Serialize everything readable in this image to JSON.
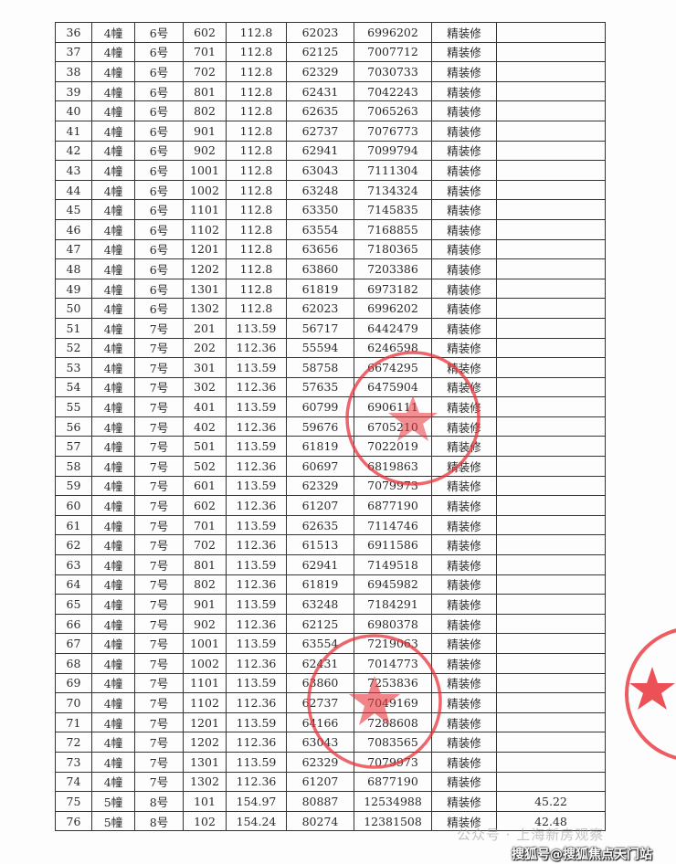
{
  "table": {
    "rows": [
      [
        "36",
        "4幢",
        "6号",
        "602",
        "112.8",
        "62023",
        "6996202",
        "精装修",
        ""
      ],
      [
        "37",
        "4幢",
        "6号",
        "701",
        "112.8",
        "62125",
        "7007712",
        "精装修",
        ""
      ],
      [
        "38",
        "4幢",
        "6号",
        "702",
        "112.8",
        "62329",
        "7030733",
        "精装修",
        ""
      ],
      [
        "39",
        "4幢",
        "6号",
        "801",
        "112.8",
        "62431",
        "7042243",
        "精装修",
        ""
      ],
      [
        "40",
        "4幢",
        "6号",
        "802",
        "112.8",
        "62635",
        "7065263",
        "精装修",
        ""
      ],
      [
        "41",
        "4幢",
        "6号",
        "901",
        "112.8",
        "62737",
        "7076773",
        "精装修",
        ""
      ],
      [
        "42",
        "4幢",
        "6号",
        "902",
        "112.8",
        "62941",
        "7099794",
        "精装修",
        ""
      ],
      [
        "43",
        "4幢",
        "6号",
        "1001",
        "112.8",
        "63043",
        "7111304",
        "精装修",
        ""
      ],
      [
        "44",
        "4幢",
        "6号",
        "1002",
        "112.8",
        "63248",
        "7134324",
        "精装修",
        ""
      ],
      [
        "45",
        "4幢",
        "6号",
        "1101",
        "112.8",
        "63350",
        "7145835",
        "精装修",
        ""
      ],
      [
        "46",
        "4幢",
        "6号",
        "1102",
        "112.8",
        "63554",
        "7168855",
        "精装修",
        ""
      ],
      [
        "47",
        "4幢",
        "6号",
        "1201",
        "112.8",
        "63656",
        "7180365",
        "精装修",
        ""
      ],
      [
        "48",
        "4幢",
        "6号",
        "1202",
        "112.8",
        "63860",
        "7203386",
        "精装修",
        ""
      ],
      [
        "49",
        "4幢",
        "6号",
        "1301",
        "112.8",
        "61819",
        "6973182",
        "精装修",
        ""
      ],
      [
        "50",
        "4幢",
        "6号",
        "1302",
        "112.8",
        "62023",
        "6996202",
        "精装修",
        ""
      ],
      [
        "51",
        "4幢",
        "7号",
        "201",
        "113.59",
        "56717",
        "6442479",
        "精装修",
        ""
      ],
      [
        "52",
        "4幢",
        "7号",
        "202",
        "112.36",
        "55594",
        "6246598",
        "精装修",
        ""
      ],
      [
        "53",
        "4幢",
        "7号",
        "301",
        "113.59",
        "58758",
        "6674295",
        "精装修",
        ""
      ],
      [
        "54",
        "4幢",
        "7号",
        "302",
        "112.36",
        "57635",
        "6475904",
        "精装修",
        ""
      ],
      [
        "55",
        "4幢",
        "7号",
        "401",
        "113.59",
        "60799",
        "6906111",
        "精装修",
        ""
      ],
      [
        "56",
        "4幢",
        "7号",
        "402",
        "112.36",
        "59676",
        "6705210",
        "精装修",
        ""
      ],
      [
        "57",
        "4幢",
        "7号",
        "501",
        "113.59",
        "61819",
        "7022019",
        "精装修",
        ""
      ],
      [
        "58",
        "4幢",
        "7号",
        "502",
        "112.36",
        "60697",
        "6819863",
        "精装修",
        ""
      ],
      [
        "59",
        "4幢",
        "7号",
        "601",
        "113.59",
        "62329",
        "7079973",
        "精装修",
        ""
      ],
      [
        "60",
        "4幢",
        "7号",
        "602",
        "112.36",
        "61207",
        "6877190",
        "精装修",
        ""
      ],
      [
        "61",
        "4幢",
        "7号",
        "701",
        "113.59",
        "62635",
        "7114746",
        "精装修",
        ""
      ],
      [
        "62",
        "4幢",
        "7号",
        "702",
        "112.36",
        "61513",
        "6911586",
        "精装修",
        ""
      ],
      [
        "63",
        "4幢",
        "7号",
        "801",
        "113.59",
        "62941",
        "7149518",
        "精装修",
        ""
      ],
      [
        "64",
        "4幢",
        "7号",
        "802",
        "112.36",
        "61819",
        "6945982",
        "精装修",
        ""
      ],
      [
        "65",
        "4幢",
        "7号",
        "901",
        "113.59",
        "63248",
        "7184291",
        "精装修",
        ""
      ],
      [
        "66",
        "4幢",
        "7号",
        "902",
        "112.36",
        "62125",
        "6980378",
        "精装修",
        ""
      ],
      [
        "67",
        "4幢",
        "7号",
        "1001",
        "113.59",
        "63554",
        "7219063",
        "精装修",
        ""
      ],
      [
        "68",
        "4幢",
        "7号",
        "1002",
        "112.36",
        "62431",
        "7014773",
        "精装修",
        ""
      ],
      [
        "69",
        "4幢",
        "7号",
        "1101",
        "113.59",
        "63860",
        "7253836",
        "精装修",
        ""
      ],
      [
        "70",
        "4幢",
        "7号",
        "1102",
        "112.36",
        "62737",
        "7049169",
        "精装修",
        ""
      ],
      [
        "71",
        "4幢",
        "7号",
        "1201",
        "113.59",
        "64166",
        "7288608",
        "精装修",
        ""
      ],
      [
        "72",
        "4幢",
        "7号",
        "1202",
        "112.36",
        "63043",
        "7083565",
        "精装修",
        ""
      ],
      [
        "73",
        "4幢",
        "7号",
        "1301",
        "113.59",
        "62329",
        "7079973",
        "精装修",
        ""
      ],
      [
        "74",
        "4幢",
        "7号",
        "1302",
        "112.36",
        "61207",
        "6877190",
        "精装修",
        ""
      ],
      [
        "75",
        "5幢",
        "8号",
        "101",
        "154.97",
        "80887",
        "12534988",
        "精装修",
        "45.22"
      ],
      [
        "76",
        "5幢",
        "8号",
        "102",
        "154.24",
        "80274",
        "12381508",
        "精装修",
        "42.48"
      ]
    ]
  },
  "stamp_color": "#e8333a",
  "watermarks": {
    "wechat": "公众号 · 上海新房观察",
    "sohu": "搜狐号@搜狐焦点天门站"
  }
}
